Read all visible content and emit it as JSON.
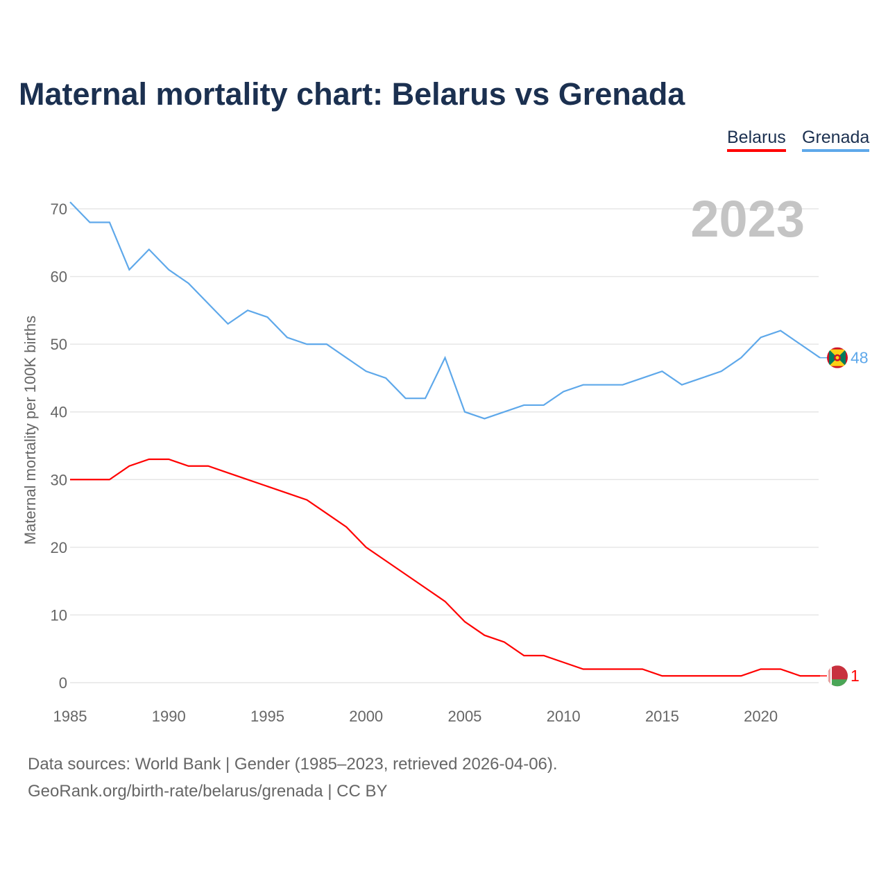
{
  "title": "Maternal mortality chart: Belarus vs Grenada",
  "legend": [
    "Belarus",
    "Grenada"
  ],
  "colors": {
    "Belarus": "#ff0000",
    "Grenada": "#5ea8ea"
  },
  "footer": {
    "line1": "Data sources: World Bank | Gender (1985–2023, retrieved 2026-04-06).",
    "line2": "GeoRank.org/birth-rate/belarus/grenada | CC BY"
  },
  "chart_data": {
    "type": "line",
    "title": "Maternal mortality chart: Belarus vs Grenada",
    "ylabel": "Maternal mortality per 100K births",
    "xlabel": "",
    "year_label": "2023",
    "xlim": [
      1985,
      2023
    ],
    "ylim": [
      0,
      70
    ],
    "xticks": [
      1985,
      1990,
      1995,
      2000,
      2005,
      2010,
      2015,
      2020
    ],
    "yticks": [
      0,
      10,
      20,
      30,
      40,
      50,
      60,
      70
    ],
    "grid": true,
    "legend_position": "top-right",
    "x": [
      1985,
      1986,
      1987,
      1988,
      1989,
      1990,
      1991,
      1992,
      1993,
      1994,
      1995,
      1996,
      1997,
      1998,
      1999,
      2000,
      2001,
      2002,
      2003,
      2004,
      2005,
      2006,
      2007,
      2008,
      2009,
      2010,
      2011,
      2012,
      2013,
      2014,
      2015,
      2016,
      2017,
      2018,
      2019,
      2020,
      2021,
      2022,
      2023
    ],
    "series": [
      {
        "name": "Belarus",
        "end_label": "1",
        "values": [
          30,
          30,
          30,
          32,
          33,
          33,
          32,
          32,
          31,
          30,
          29,
          28,
          27,
          25,
          23,
          20,
          18,
          16,
          14,
          12,
          9,
          7,
          6,
          4,
          4,
          3,
          2,
          2,
          2,
          2,
          1,
          1,
          1,
          1,
          1,
          2,
          2,
          1,
          1
        ]
      },
      {
        "name": "Grenada",
        "end_label": "48",
        "values": [
          71,
          68,
          68,
          61,
          64,
          61,
          59,
          56,
          53,
          55,
          54,
          51,
          50,
          50,
          48,
          46,
          45,
          42,
          42,
          48,
          40,
          39,
          40,
          41,
          41,
          43,
          44,
          44,
          44,
          45,
          46,
          44,
          45,
          46,
          48,
          51,
          52,
          50,
          48
        ]
      }
    ]
  }
}
